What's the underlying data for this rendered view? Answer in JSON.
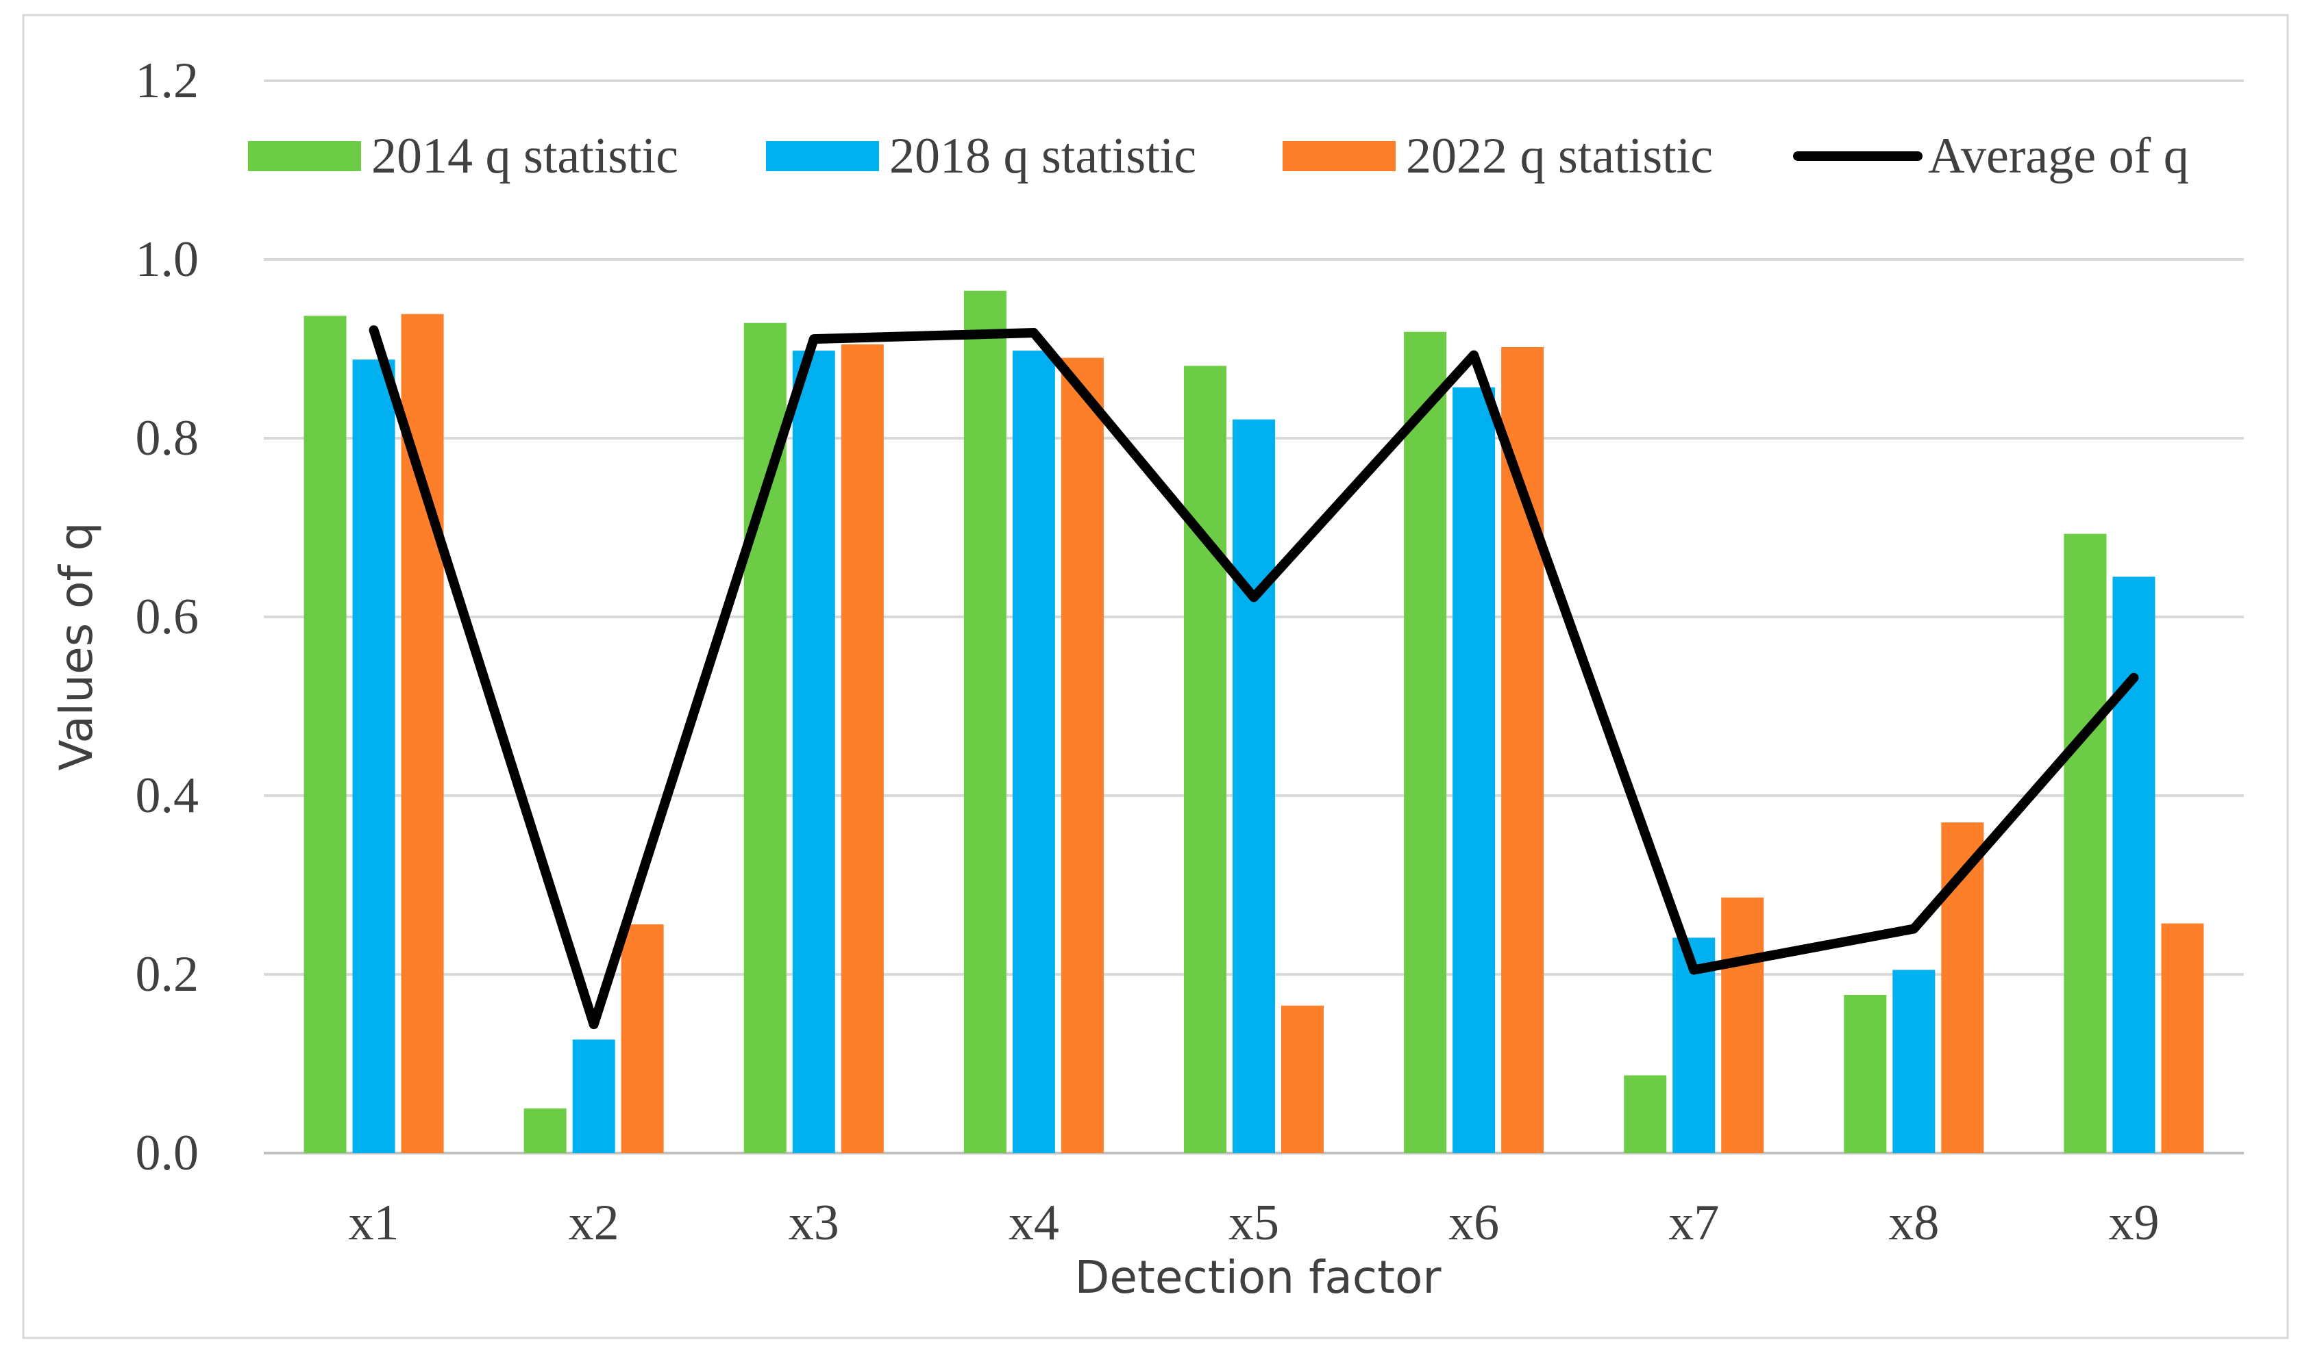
{
  "chart_data": {
    "type": "bar",
    "title": "",
    "xlabel": "Detection factor",
    "ylabel": "Values of q",
    "ylim": [
      0,
      1.2
    ],
    "yticks": [
      "0.0",
      "0.2",
      "0.4",
      "0.6",
      "0.8",
      "1.0",
      "1.2"
    ],
    "grid": true,
    "legend_position": "top",
    "categories": [
      "x1",
      "x2",
      "x3",
      "x4",
      "x5",
      "x6",
      "x7",
      "x8",
      "x9"
    ],
    "series": [
      {
        "name": "2014 q statistic",
        "kind": "bar",
        "color": "#6ccc45",
        "values": [
          0.937,
          0.05,
          0.929,
          0.965,
          0.881,
          0.919,
          0.087,
          0.177,
          0.693
        ]
      },
      {
        "name": "2018 q statistic",
        "kind": "bar",
        "color": "#00b0f0",
        "values": [
          0.888,
          0.127,
          0.898,
          0.898,
          0.821,
          0.857,
          0.241,
          0.205,
          0.645
        ]
      },
      {
        "name": "2022 q statistic",
        "kind": "bar",
        "color": "#fd7f2a",
        "values": [
          0.939,
          0.256,
          0.905,
          0.89,
          0.165,
          0.902,
          0.286,
          0.37,
          0.257
        ]
      },
      {
        "name": "Average of q",
        "kind": "line",
        "color": "#000000",
        "values": [
          0.921,
          0.144,
          0.911,
          0.918,
          0.622,
          0.893,
          0.205,
          0.251,
          0.532
        ]
      }
    ]
  }
}
